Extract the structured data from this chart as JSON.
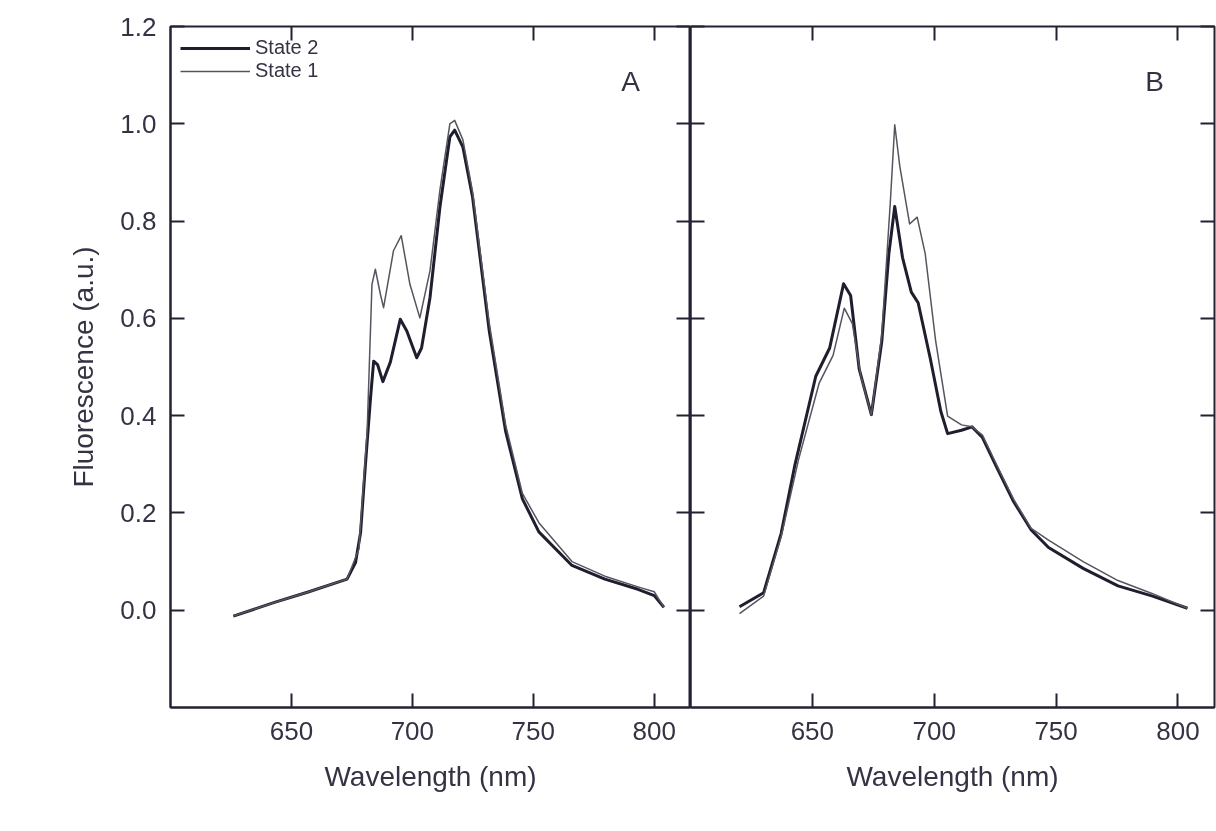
{
  "chart_data": [
    {
      "type": "line",
      "xlabel": "Wavelength (nm)",
      "ylabel": "Fluorescence (a.u.)",
      "annotations": [
        "A"
      ],
      "xlim": [
        600,
        815
      ],
      "ylim": [
        -0.2,
        1.2
      ],
      "xticks": [
        650,
        700,
        750,
        800
      ],
      "yticks": [
        {
          "value": 0,
          "label": "0.0"
        },
        {
          "value": 0.2,
          "label": "0.2"
        },
        {
          "value": 0.4,
          "label": "0.4"
        },
        {
          "value": 0.6,
          "label": "0.6"
        },
        {
          "value": 0.8,
          "label": "0.8"
        },
        {
          "value": 1.0,
          "label": "1.0"
        },
        {
          "value": 1.2,
          "label": "1.2"
        }
      ],
      "legend": "top left",
      "grid": false,
      "series": [
        {
          "name": "State 2",
          "color": "#1e1e2e",
          "x": [
            626,
            643,
            656.6,
            673,
            676.5,
            678.6,
            680.6,
            682.7,
            684,
            685.6,
            687.8,
            690.9,
            695,
            697.7,
            701.8,
            703.8,
            707.3,
            711.4,
            715.5,
            717.5,
            720.9,
            724.9,
            731.8,
            738.6,
            745.5,
            752.3,
            766,
            779.6,
            793.3,
            800,
            804
          ],
          "values": [
            -0.012,
            0.016,
            0.037,
            0.064,
            0.098,
            0.16,
            0.3,
            0.436,
            0.512,
            0.505,
            0.47,
            0.51,
            0.598,
            0.574,
            0.519,
            0.539,
            0.643,
            0.829,
            0.973,
            0.987,
            0.952,
            0.849,
            0.574,
            0.367,
            0.229,
            0.161,
            0.092,
            0.064,
            0.043,
            0.03,
            0.006
          ]
        },
        {
          "name": "State 1",
          "color": "#55555f",
          "x": [
            626,
            643,
            656.6,
            673,
            677.9,
            681.3,
            683.3,
            684.7,
            686.8,
            688.1,
            692.2,
            695.4,
            699,
            703.1,
            707.3,
            711.4,
            715.5,
            717.5,
            720.9,
            724.9,
            731.8,
            738.6,
            745.5,
            752.3,
            766,
            779.6,
            793.3,
            800,
            804
          ],
          "values": [
            -0.012,
            0.016,
            0.037,
            0.064,
            0.126,
            0.367,
            0.67,
            0.701,
            0.649,
            0.622,
            0.739,
            0.77,
            0.67,
            0.601,
            0.698,
            0.864,
            1.0,
            1.007,
            0.967,
            0.86,
            0.59,
            0.38,
            0.24,
            0.18,
            0.1,
            0.07,
            0.048,
            0.038,
            0.006
          ]
        }
      ]
    },
    {
      "type": "line",
      "xlabel": "Wavelength (nm)",
      "annotations": [
        "B"
      ],
      "xlim": [
        600,
        815
      ],
      "ylim": [
        -0.2,
        1.2
      ],
      "xticks": [
        650,
        700,
        750,
        800
      ],
      "yticks": [
        {
          "value": 0,
          "label": null
        },
        {
          "value": 0.2,
          "label": null
        },
        {
          "value": 0.4,
          "label": null
        },
        {
          "value": 0.6,
          "label": null
        },
        {
          "value": 0.8,
          "label": null
        },
        {
          "value": 1.0,
          "label": null
        },
        {
          "value": 1.2,
          "label": null
        }
      ],
      "tick_labels": "x",
      "grid": false,
      "series": [
        {
          "color": "#1e1e2e",
          "x": [
            620.1,
            630,
            637.2,
            642.9,
            651.4,
            657.1,
            662.8,
            665.7,
            669.2,
            674.2,
            678.5,
            681.4,
            683.8,
            687,
            690.6,
            693.4,
            698.4,
            702.7,
            705.5,
            711.2,
            715.5,
            719.8,
            725.5,
            732.6,
            739.8,
            746.9,
            761.1,
            775.4,
            789.6,
            803.9
          ],
          "values": [
            0.007,
            0.036,
            0.158,
            0.3,
            0.481,
            0.539,
            0.671,
            0.647,
            0.496,
            0.402,
            0.553,
            0.733,
            0.83,
            0.725,
            0.654,
            0.632,
            0.517,
            0.409,
            0.363,
            0.37,
            0.377,
            0.355,
            0.295,
            0.223,
            0.165,
            0.129,
            0.086,
            0.05,
            0.029,
            0.004
          ]
        },
        {
          "color": "#55555f",
          "x": [
            620.1,
            630,
            637.2,
            644.3,
            652.8,
            658.5,
            663.1,
            666.4,
            669.9,
            674.2,
            678.5,
            682,
            683.8,
            685.9,
            689.9,
            693,
            696.3,
            700.6,
            705.5,
            711.2,
            715.5,
            719.8,
            725.5,
            732.6,
            739.8,
            746.9,
            761.1,
            775.4,
            789.6,
            803.9
          ],
          "values": [
            -0.007,
            0.029,
            0.151,
            0.309,
            0.467,
            0.524,
            0.621,
            0.589,
            0.481,
            0.402,
            0.567,
            0.84,
            0.998,
            0.912,
            0.794,
            0.808,
            0.733,
            0.553,
            0.399,
            0.381,
            0.377,
            0.36,
            0.3,
            0.228,
            0.168,
            0.144,
            0.1,
            0.061,
            0.034,
            0.004
          ]
        }
      ]
    }
  ]
}
